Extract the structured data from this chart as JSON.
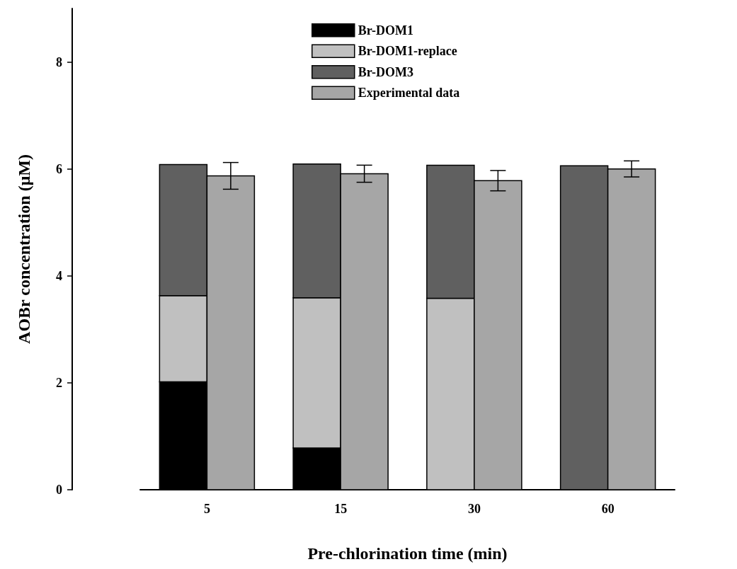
{
  "chart_data": {
    "type": "bar",
    "xlabel": "Pre-chlorination time (min)",
    "ylabel": "AOBr concentration (μM)",
    "categories": [
      "5",
      "15",
      "30",
      "60"
    ],
    "series": [
      {
        "name": "Br-DOM1",
        "color": "#000000",
        "values": [
          2.02,
          0.78,
          0,
          0
        ],
        "base": [
          0,
          0,
          0,
          0
        ]
      },
      {
        "name": "Br-DOM1-replace",
        "color": "#c0c0c0",
        "values": [
          1.61,
          2.81,
          3.58,
          null
        ],
        "base": [
          2.02,
          0.78,
          0,
          null
        ]
      },
      {
        "name": "Br-DOM3",
        "color": "#606060",
        "values": [
          2.45,
          2.5,
          2.49,
          6.06
        ],
        "base": [
          3.63,
          3.59,
          3.58,
          0
        ]
      },
      {
        "name": "Experimental data",
        "color": "#a6a6a6",
        "values": [
          5.87,
          5.91,
          5.78,
          6.0
        ],
        "errors": [
          0.25,
          0.16,
          0.19,
          0.15
        ]
      }
    ],
    "ylim": [
      0,
      9
    ],
    "yticks": [
      0,
      2,
      4,
      6,
      8
    ],
    "grid": false,
    "legend": "top"
  }
}
